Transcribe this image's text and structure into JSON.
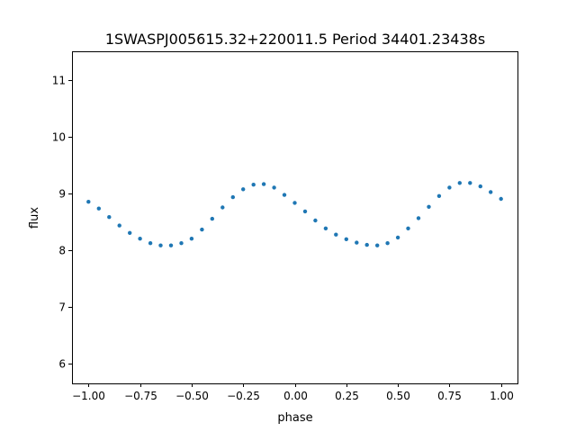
{
  "chart_data": {
    "type": "scatter",
    "title": "1SWASPJ005615.32+220011.5 Period 34401.23438s",
    "xlabel": "phase",
    "ylabel": "flux",
    "xlim": [
      -1.08,
      1.08
    ],
    "ylim": [
      5.65,
      11.5
    ],
    "x_ticks": [
      -1.0,
      -0.75,
      -0.5,
      -0.25,
      0.0,
      0.25,
      0.5,
      0.75,
      1.0
    ],
    "x_tick_labels": [
      "−1.00",
      "−0.75",
      "−0.50",
      "−0.25",
      "0.00",
      "0.25",
      "0.50",
      "0.75",
      "1.00"
    ],
    "y_ticks": [
      6,
      7,
      8,
      9,
      10,
      11
    ],
    "y_tick_labels": [
      "6",
      "7",
      "8",
      "9",
      "10",
      "11"
    ],
    "grid": false,
    "legend": "none",
    "marker_color": "#1f77b4",
    "series": [
      {
        "x": [
          -1.0,
          -0.95,
          -0.9,
          -0.85,
          -0.8,
          -0.75,
          -0.7,
          -0.65,
          -0.6,
          -0.55,
          -0.5,
          -0.45,
          -0.4,
          -0.35,
          -0.3,
          -0.25,
          -0.2,
          -0.15,
          -0.1,
          -0.05,
          0.0,
          0.05,
          0.1,
          0.15,
          0.2,
          0.25,
          0.3,
          0.35,
          0.4,
          0.45,
          0.5,
          0.55,
          0.6,
          0.65,
          0.7,
          0.75,
          0.8,
          0.85,
          0.9,
          0.95,
          1.0
        ],
        "y": [
          8.85,
          8.73,
          8.58,
          8.43,
          8.3,
          8.2,
          8.12,
          8.08,
          8.08,
          8.12,
          8.2,
          8.36,
          8.55,
          8.75,
          8.93,
          9.07,
          9.15,
          9.16,
          9.1,
          8.97,
          8.83,
          8.68,
          8.52,
          8.38,
          8.27,
          8.19,
          8.13,
          8.09,
          8.08,
          8.12,
          8.22,
          8.38,
          8.56,
          8.76,
          8.95,
          9.1,
          9.18,
          9.18,
          9.12,
          9.02,
          8.9
        ]
      }
    ]
  }
}
